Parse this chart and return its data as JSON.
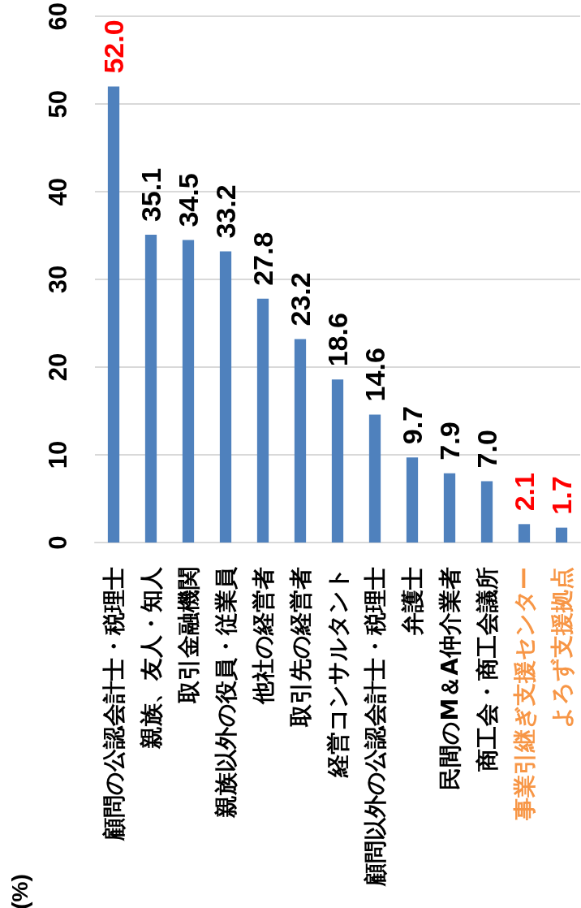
{
  "chart_data": {
    "type": "bar",
    "categories": [
      "顧問の公認会計士・税理士",
      "親族、友人・知人",
      "取引金融機関",
      "親族以外の役員・従業員",
      "他社の経営者",
      "取引先の経営者",
      "経営コンサルタント",
      "顧問以外の公認会計士・税理士",
      "弁護士",
      "民間のM＆A仲介業者",
      "商工会・商工会議所",
      "事業引継ぎ支援センター",
      "よろず支援拠点"
    ],
    "values": [
      52.0,
      35.1,
      34.5,
      33.2,
      27.8,
      23.2,
      18.6,
      14.6,
      9.7,
      7.9,
      7.0,
      2.1,
      1.7
    ],
    "value_labels": [
      "52.0",
      "35.1",
      "34.5",
      "33.2",
      "27.8",
      "23.2",
      "18.6",
      "14.6",
      "9.7",
      "7.9",
      "7.0",
      "2.1",
      "1.7"
    ],
    "color": "#4f81bd",
    "ylabel": "(%)",
    "ylim": [
      0,
      60
    ],
    "yticks": [
      0,
      10,
      20,
      30,
      40,
      50,
      60
    ],
    "grid": "y"
  }
}
